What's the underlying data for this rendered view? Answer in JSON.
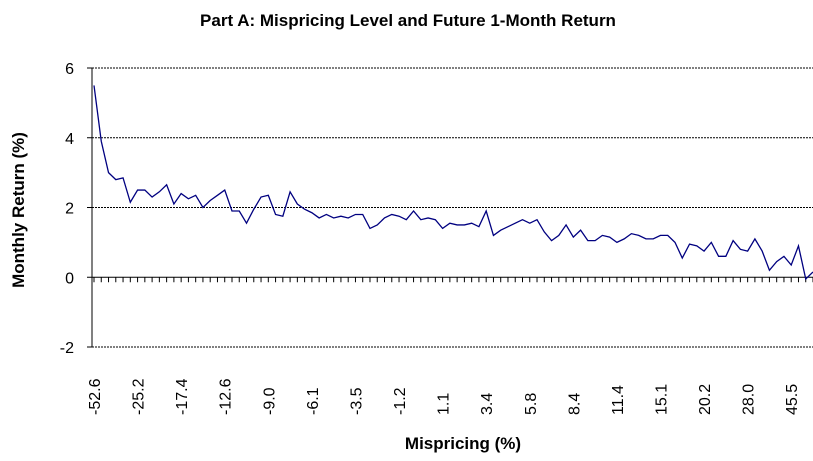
{
  "chart_data": {
    "type": "line",
    "title": "Part A: Mispricing Level and Future 1-Month Return",
    "x_label": "Mispricing (%)",
    "y_label": "Monthly Return (%)",
    "categories": [
      "-52.6",
      null,
      null,
      null,
      null,
      null,
      "-25.2",
      null,
      null,
      null,
      null,
      null,
      "-17.4",
      null,
      null,
      null,
      null,
      null,
      "-12.6",
      null,
      null,
      null,
      null,
      null,
      "-9.0",
      null,
      null,
      null,
      null,
      null,
      "-6.1",
      null,
      null,
      null,
      null,
      null,
      "-3.5",
      null,
      null,
      null,
      null,
      null,
      "-1.2",
      null,
      null,
      null,
      null,
      null,
      "1.1",
      null,
      null,
      null,
      null,
      null,
      "3.4",
      null,
      null,
      null,
      null,
      null,
      "5.8",
      null,
      null,
      null,
      null,
      null,
      "8.4",
      null,
      null,
      null,
      null,
      null,
      "11.4",
      null,
      null,
      null,
      null,
      null,
      "15.1",
      null,
      null,
      null,
      null,
      null,
      "20.2",
      null,
      null,
      null,
      null,
      null,
      "28.0",
      null,
      null,
      null,
      null,
      null,
      "45.5",
      null,
      null,
      null
    ],
    "values": [
      5.5,
      3.9,
      3.0,
      2.8,
      2.85,
      2.15,
      2.5,
      2.5,
      2.3,
      2.45,
      2.65,
      2.1,
      2.4,
      2.25,
      2.35,
      2.0,
      2.2,
      2.35,
      2.5,
      1.9,
      1.9,
      1.55,
      1.95,
      2.3,
      2.35,
      1.8,
      1.75,
      2.45,
      2.1,
      1.95,
      1.85,
      1.7,
      1.8,
      1.7,
      1.75,
      1.7,
      1.8,
      1.8,
      1.4,
      1.5,
      1.7,
      1.8,
      1.75,
      1.65,
      1.9,
      1.65,
      1.7,
      1.65,
      1.4,
      1.55,
      1.5,
      1.5,
      1.55,
      1.45,
      1.9,
      1.2,
      1.35,
      1.45,
      1.55,
      1.65,
      1.55,
      1.65,
      1.3,
      1.05,
      1.2,
      1.5,
      1.15,
      1.35,
      1.05,
      1.05,
      1.2,
      1.15,
      1.0,
      1.1,
      1.25,
      1.2,
      1.1,
      1.1,
      1.2,
      1.2,
      1.0,
      0.55,
      0.95,
      0.9,
      0.75,
      1.0,
      0.6,
      0.6,
      1.05,
      0.8,
      0.75,
      1.1,
      0.75,
      0.2,
      0.45,
      0.6,
      0.35,
      0.9,
      -0.05,
      0.15
    ],
    "color": "#000080",
    "ylim": [
      -2,
      6
    ],
    "yticks": [
      -2,
      0,
      2,
      4,
      6
    ],
    "grid": true
  }
}
